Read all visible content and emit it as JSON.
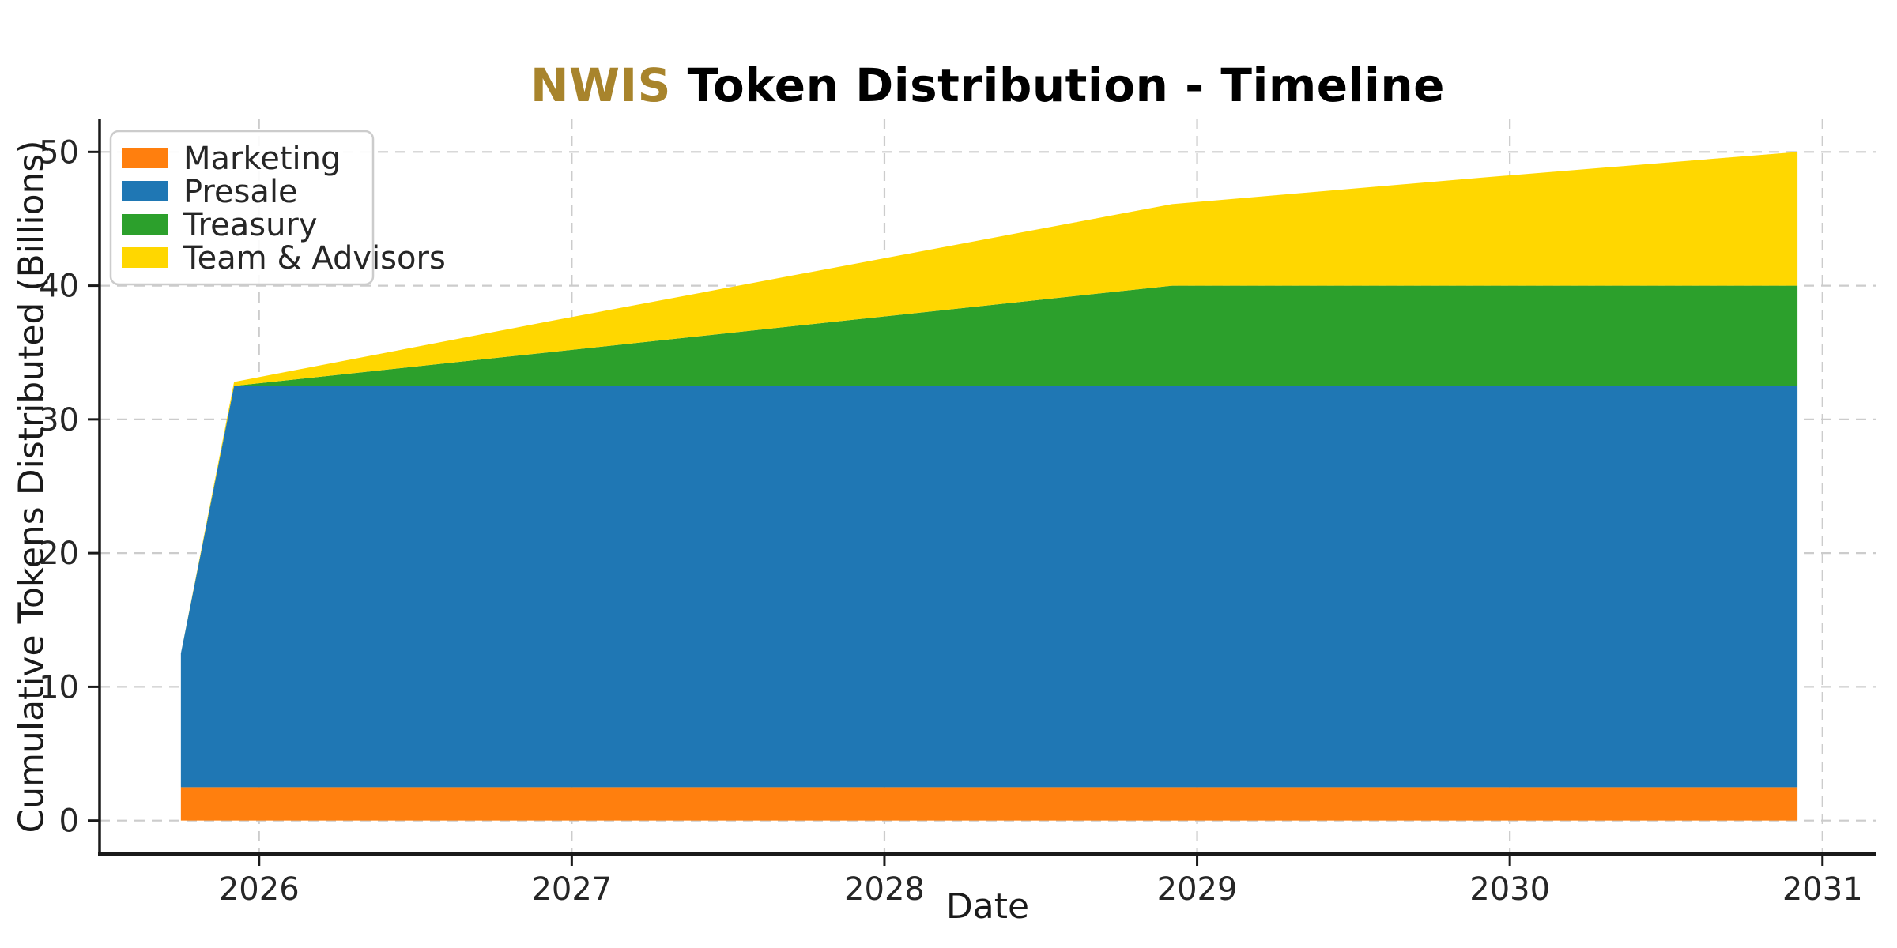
{
  "title": {
    "highlight": "NWIS",
    "rest": " Token Distribution - Timeline",
    "highlight_color": "#A8842C",
    "rest_color": "#000000"
  },
  "chart_data": {
    "type": "area",
    "stacked": true,
    "title": "NWIS Token Distribution - Timeline",
    "xlabel": "Date",
    "ylabel": "Cumulative Tokens Distributed (Billions)",
    "x": [
      2025.75,
      2025.92,
      2026.92,
      2027.92,
      2028.92,
      2029.92,
      2030.92
    ],
    "series": [
      {
        "name": "Marketing",
        "color": "#ff7f0e",
        "values": [
          2.5,
          2.5,
          2.5,
          2.5,
          2.5,
          2.5,
          2.5
        ]
      },
      {
        "name": "Presale",
        "color": "#1f77b4",
        "values": [
          10,
          30,
          30,
          30,
          30,
          30,
          30
        ]
      },
      {
        "name": "Treasury",
        "color": "#2ca02c",
        "values": [
          0,
          0,
          2.5,
          5.0,
          7.5,
          7.5,
          7.5
        ]
      },
      {
        "name": "Team & Advisors",
        "color": "#ffd700",
        "values": [
          0,
          0.3,
          2.3,
          4.2,
          6.1,
          8.1,
          10
        ]
      }
    ],
    "x_ticks": [
      {
        "value": 2026,
        "label": "2026"
      },
      {
        "value": 2027,
        "label": "2027"
      },
      {
        "value": 2028,
        "label": "2028"
      },
      {
        "value": 2029,
        "label": "2029"
      },
      {
        "value": 2030,
        "label": "2030"
      },
      {
        "value": 2031,
        "label": "2031"
      }
    ],
    "y_ticks": [
      {
        "value": 0,
        "label": "0"
      },
      {
        "value": 10,
        "label": "10"
      },
      {
        "value": 20,
        "label": "20"
      },
      {
        "value": 30,
        "label": "30"
      },
      {
        "value": 40,
        "label": "40"
      },
      {
        "value": 50,
        "label": "50"
      }
    ],
    "xlim": [
      2025.49,
      2031.17
    ],
    "ylim": [
      -2.5,
      52.5
    ],
    "grid": true,
    "grid_color": "#cccccc",
    "spine_color": "#1a1a1a",
    "legend_position": "upper left",
    "legend_border_color": "#cccccc",
    "legend_background": "#ffffff"
  }
}
